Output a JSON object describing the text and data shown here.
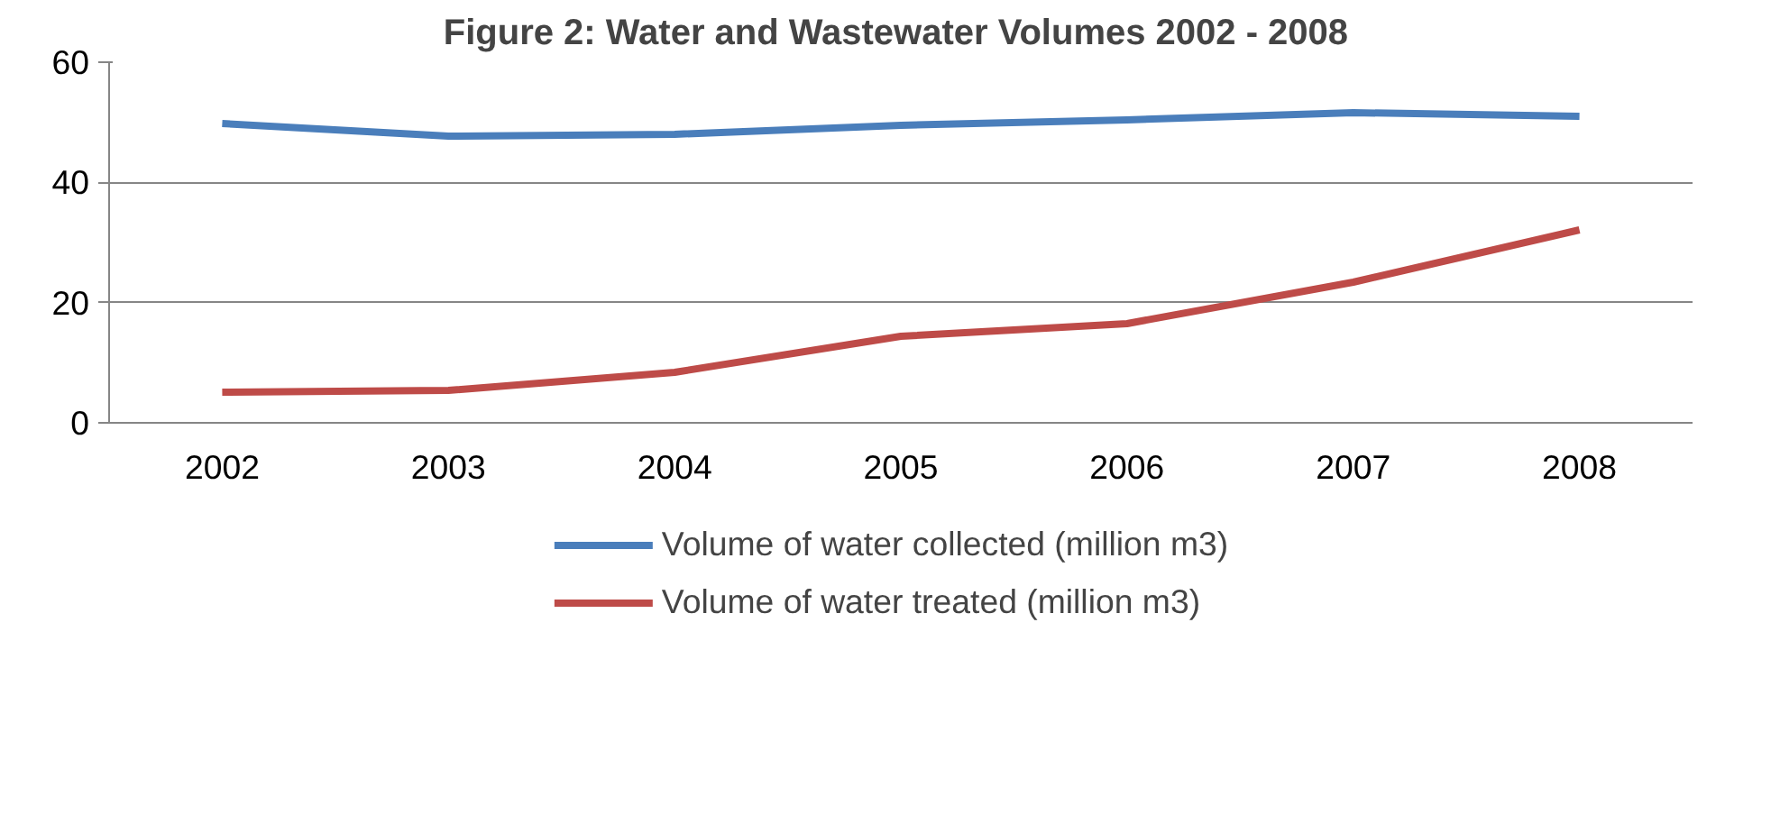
{
  "chart_data": {
    "type": "line",
    "title": "Figure 2:  Water and Wastewater Volumes 2002 - 2008",
    "categories": [
      "2002",
      "2003",
      "2004",
      "2005",
      "2006",
      "2007",
      "2008"
    ],
    "series": [
      {
        "name": "Volume of water collected (million m3)",
        "color": "#4a7ebb",
        "values": [
          49.8,
          47.7,
          48,
          49.5,
          50.4,
          51.6,
          51
        ]
      },
      {
        "name": "Volume of water treated (million m3)",
        "color": "#be4b48",
        "values": [
          5.1,
          5.4,
          8.4,
          14.4,
          16.5,
          23.4,
          32.1
        ]
      }
    ],
    "ylim": [
      0,
      60
    ],
    "yticks": [
      0,
      20,
      40,
      60
    ],
    "grid": "y",
    "legend": "bottom",
    "marker": "none",
    "line_style": "solid"
  }
}
